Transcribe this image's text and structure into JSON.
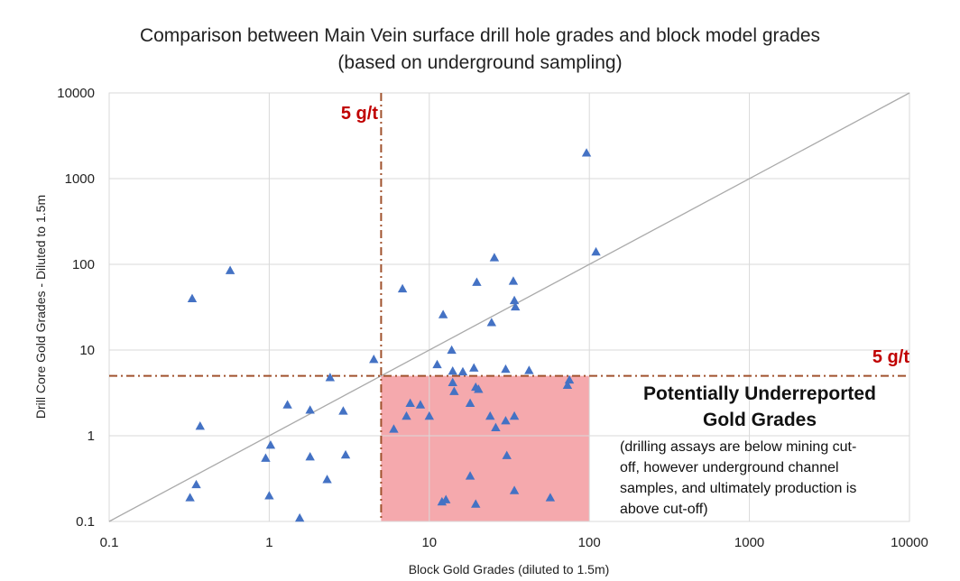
{
  "chart_data": {
    "type": "scatter",
    "title_lines": [
      "Comparison between Main Vein surface drill hole grades and block model grades",
      "(based on underground sampling)"
    ],
    "xlabel": "Block Gold Grades (diluted to 1.5m)",
    "ylabel": "Drill Core Gold Grades - Diluted to 1.5m",
    "x_scale": "log",
    "y_scale": "log",
    "xlim": [
      0.1,
      10000
    ],
    "ylim": [
      0.1,
      10000
    ],
    "x_ticks": [
      "0.1",
      "1",
      "10",
      "100",
      "1000",
      "10000"
    ],
    "y_ticks": [
      "0.1",
      "1",
      "10",
      "100",
      "1000",
      "10000"
    ],
    "grid": true,
    "reference_line": {
      "type": "y=x"
    },
    "cutoffs": {
      "x": 5,
      "y": 5,
      "x_label": "5 g/t",
      "y_label": "5 g/t"
    },
    "highlight_region": {
      "x": [
        5,
        100
      ],
      "y": [
        0.1,
        5
      ]
    },
    "annotation": {
      "title_lines": [
        "Potentially Underreported",
        "Gold Grades"
      ],
      "body_lines": [
        "(drilling assays are below mining cut-",
        "off, however underground channel",
        "samples, and ultimately production is",
        "above cut-off)"
      ]
    },
    "colors": {
      "marker": "#4472c4",
      "cutoff": "#a0522d",
      "cutoff_label": "#c00000",
      "highlight": "#f4a0a4",
      "grid": "#d9d9d9",
      "reference": "#aaaaaa"
    },
    "series": [
      {
        "marker": "triangle",
        "points": [
          [
            0.33,
            40
          ],
          [
            0.57,
            85
          ],
          [
            0.37,
            1.3
          ],
          [
            0.35,
            0.27
          ],
          [
            0.32,
            0.19
          ],
          [
            0.95,
            0.55
          ],
          [
            1.02,
            0.78
          ],
          [
            1.0,
            0.2
          ],
          [
            1.55,
            0.11
          ],
          [
            1.3,
            2.3
          ],
          [
            1.8,
            2.0
          ],
          [
            1.8,
            0.57
          ],
          [
            2.4,
            4.8
          ],
          [
            2.3,
            0.31
          ],
          [
            2.9,
            1.95
          ],
          [
            3.0,
            0.6
          ],
          [
            4.5,
            7.8
          ],
          [
            6.8,
            52
          ],
          [
            6.0,
            1.2
          ],
          [
            7.2,
            1.7
          ],
          [
            7.6,
            2.4
          ],
          [
            8.8,
            2.3
          ],
          [
            10.0,
            1.7
          ],
          [
            11.2,
            6.8
          ],
          [
            12.2,
            26
          ],
          [
            12.0,
            0.17
          ],
          [
            12.7,
            0.18
          ],
          [
            13.8,
            10
          ],
          [
            14.0,
            5.7
          ],
          [
            14.0,
            4.2
          ],
          [
            14.3,
            3.3
          ],
          [
            16.2,
            5.6
          ],
          [
            18.0,
            2.4
          ],
          [
            18.0,
            0.34
          ],
          [
            19.0,
            6.2
          ],
          [
            19.8,
            62
          ],
          [
            19.5,
            3.7
          ],
          [
            20.3,
            3.5
          ],
          [
            19.5,
            0.16
          ],
          [
            24.0,
            1.7
          ],
          [
            24.5,
            21
          ],
          [
            25.5,
            120
          ],
          [
            26.0,
            1.25
          ],
          [
            30.0,
            6.0
          ],
          [
            30.0,
            1.5
          ],
          [
            30.5,
            0.59
          ],
          [
            33.5,
            64
          ],
          [
            34.0,
            38
          ],
          [
            34.5,
            32
          ],
          [
            34.0,
            1.7
          ],
          [
            34.0,
            0.23
          ],
          [
            42.0,
            5.8
          ],
          [
            57.0,
            0.19
          ],
          [
            73.0,
            3.9
          ],
          [
            75.0,
            4.5
          ],
          [
            96.0,
            2000
          ],
          [
            110.0,
            140
          ]
        ]
      }
    ]
  }
}
